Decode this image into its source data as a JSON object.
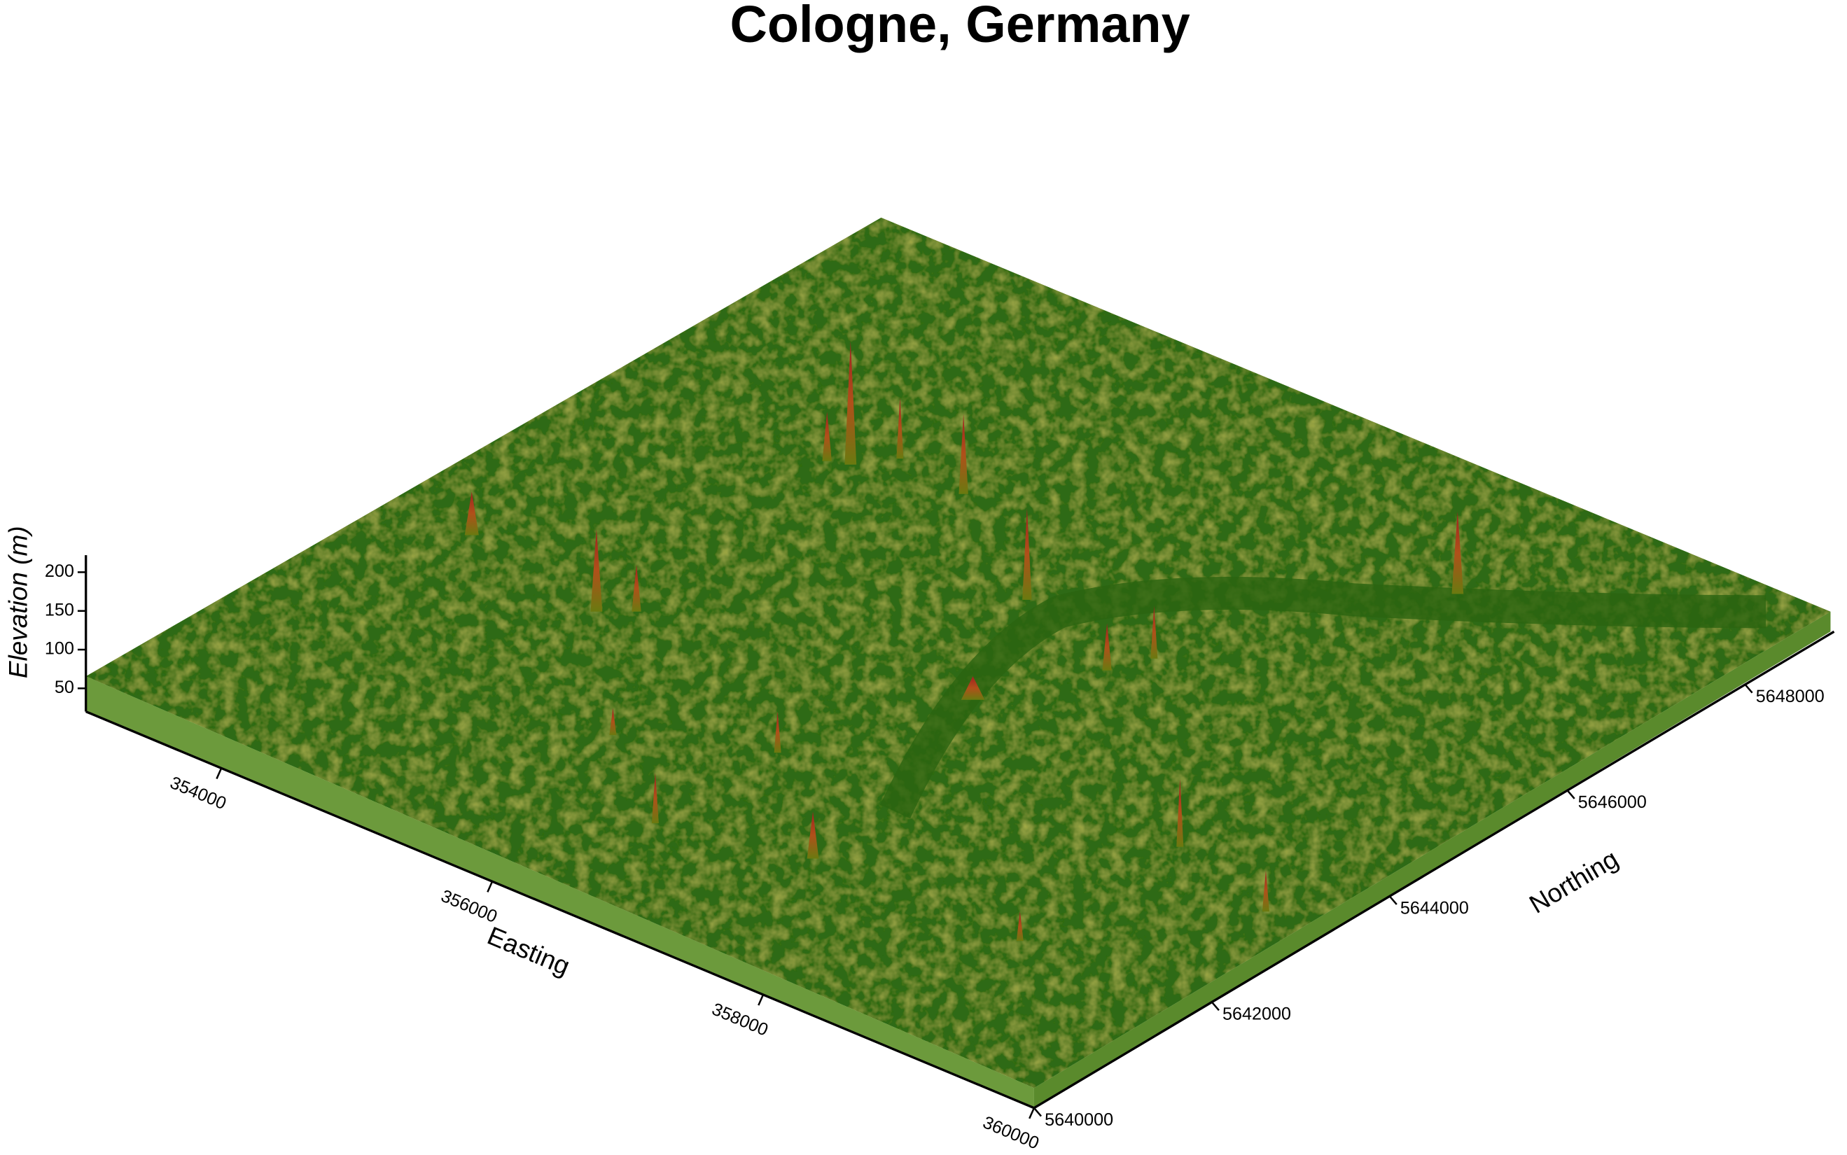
{
  "chart_data": {
    "type": "surface3d",
    "title": "Cologne, Germany",
    "xlabel": "Easting",
    "ylabel": "Northing",
    "zlabel": "Elevation (m)",
    "xlim": [
      353000,
      360000
    ],
    "xticks": [
      354000,
      356000,
      358000,
      360000
    ],
    "ylim": [
      5640000,
      5649000
    ],
    "yticks": [
      5640000,
      5642000,
      5644000,
      5646000,
      5648000
    ],
    "zlim": [
      20,
      222
    ],
    "zticks": [
      50,
      100,
      150,
      200
    ]
  }
}
